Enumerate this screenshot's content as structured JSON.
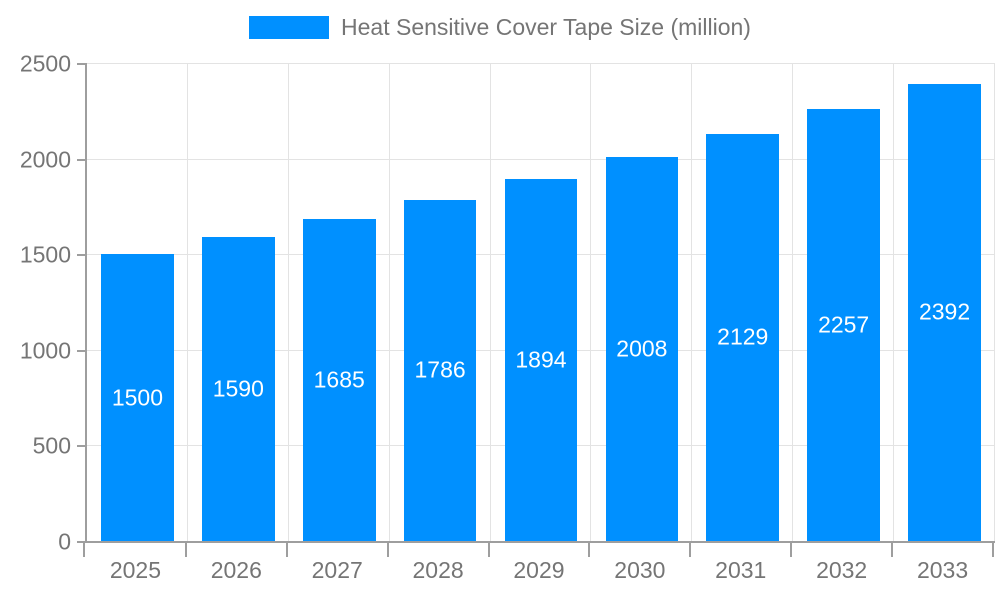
{
  "chart_data": {
    "type": "bar",
    "title": "Heat Sensitive Cover Tape Size (million)",
    "categories": [
      "2025",
      "2026",
      "2027",
      "2028",
      "2029",
      "2030",
      "2031",
      "2032",
      "2033"
    ],
    "values": [
      1500,
      1590,
      1685,
      1786,
      1894,
      2008,
      2129,
      2257,
      2392
    ],
    "xlabel": "",
    "ylabel": "",
    "ylim": [
      0,
      2500
    ],
    "yticks": [
      0,
      500,
      1000,
      1500,
      2000,
      2500
    ],
    "grid": true,
    "legend_position": "top",
    "bar_value_labels": "inside-center",
    "colors": {
      "bar": "#0090ff",
      "bar_label_text": "#ffffff",
      "grid_line": "#e3e3e3",
      "axis_line": "#9e9e9e",
      "tick_text": "#757575",
      "legend_text": "#757575",
      "background": "#ffffff"
    }
  }
}
